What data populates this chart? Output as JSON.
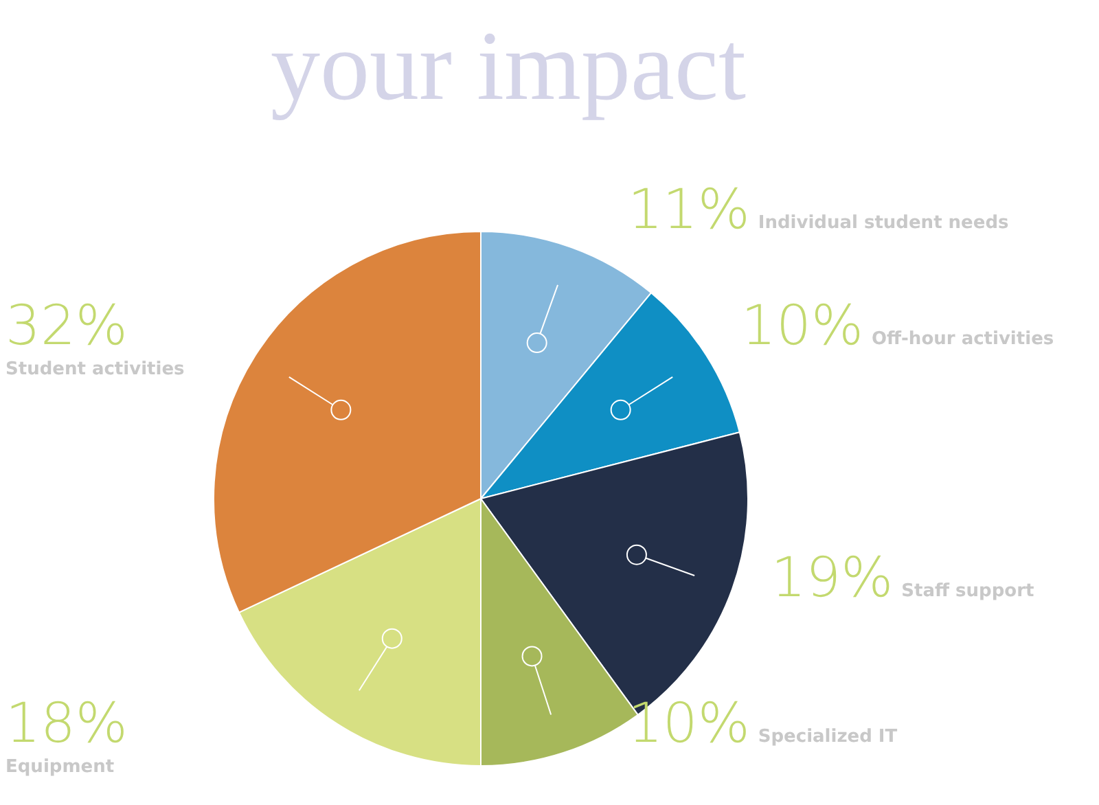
{
  "chart_data": {
    "type": "pie",
    "title": "your impact",
    "categories": [
      "Individual student needs",
      "Off-hour activities",
      "Staff support",
      "Specialized IT",
      "Equipment",
      "Student activities"
    ],
    "values": [
      11,
      10,
      19,
      10,
      18,
      32
    ],
    "value_labels": [
      "11%",
      "10%",
      "19%",
      "10%",
      "18%",
      "32%"
    ],
    "colors": [
      "#85b8dc",
      "#0f8fc4",
      "#232f48",
      "#a6b85a",
      "#d7e083",
      "#dc843d"
    ],
    "legend": false
  }
}
